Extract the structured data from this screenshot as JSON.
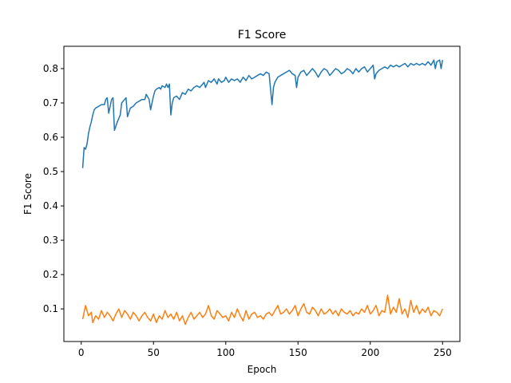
{
  "chart_data": {
    "type": "line",
    "title": "F1 Score",
    "xlabel": "Epoch",
    "ylabel": "F1 Score",
    "xlim": [
      -12,
      262
    ],
    "ylim": [
      0.005,
      0.865
    ],
    "xticks": [
      0,
      50,
      100,
      150,
      200,
      250
    ],
    "yticks": [
      0.1,
      0.2,
      0.3,
      0.4,
      0.5,
      0.6,
      0.7,
      0.8
    ],
    "ytick_labels": [
      "0.1",
      "0.2",
      "0.3",
      "0.4",
      "0.5",
      "0.6",
      "0.7",
      "0.8"
    ],
    "grid": false,
    "legend": false,
    "series": [
      {
        "color": "#1f77b4",
        "points": [
          [
            1,
            0.51
          ],
          [
            2,
            0.57
          ],
          [
            3,
            0.565
          ],
          [
            4,
            0.58
          ],
          [
            5,
            0.61
          ],
          [
            6,
            0.63
          ],
          [
            7,
            0.645
          ],
          [
            8,
            0.665
          ],
          [
            9,
            0.68
          ],
          [
            10,
            0.685
          ],
          [
            12,
            0.69
          ],
          [
            14,
            0.695
          ],
          [
            16,
            0.695
          ],
          [
            17,
            0.71
          ],
          [
            18,
            0.715
          ],
          [
            19,
            0.67
          ],
          [
            20,
            0.69
          ],
          [
            21,
            0.71
          ],
          [
            22,
            0.715
          ],
          [
            23,
            0.62
          ],
          [
            25,
            0.645
          ],
          [
            27,
            0.665
          ],
          [
            28,
            0.7
          ],
          [
            30,
            0.71
          ],
          [
            31,
            0.715
          ],
          [
            32,
            0.66
          ],
          [
            34,
            0.685
          ],
          [
            36,
            0.69
          ],
          [
            38,
            0.7
          ],
          [
            40,
            0.705
          ],
          [
            42,
            0.71
          ],
          [
            44,
            0.71
          ],
          [
            45,
            0.725
          ],
          [
            47,
            0.71
          ],
          [
            48,
            0.68
          ],
          [
            50,
            0.72
          ],
          [
            51,
            0.735
          ],
          [
            52,
            0.74
          ],
          [
            54,
            0.745
          ],
          [
            55,
            0.74
          ],
          [
            56,
            0.75
          ],
          [
            58,
            0.745
          ],
          [
            59,
            0.755
          ],
          [
            60,
            0.745
          ],
          [
            61,
            0.755
          ],
          [
            62,
            0.665
          ],
          [
            63,
            0.7
          ],
          [
            64,
            0.715
          ],
          [
            66,
            0.72
          ],
          [
            68,
            0.71
          ],
          [
            70,
            0.73
          ],
          [
            72,
            0.725
          ],
          [
            74,
            0.74
          ],
          [
            76,
            0.735
          ],
          [
            78,
            0.745
          ],
          [
            80,
            0.75
          ],
          [
            82,
            0.745
          ],
          [
            84,
            0.755
          ],
          [
            85,
            0.76
          ],
          [
            86,
            0.745
          ],
          [
            88,
            0.765
          ],
          [
            90,
            0.76
          ],
          [
            92,
            0.77
          ],
          [
            94,
            0.755
          ],
          [
            95,
            0.77
          ],
          [
            97,
            0.76
          ],
          [
            99,
            0.765
          ],
          [
            100,
            0.775
          ],
          [
            102,
            0.76
          ],
          [
            104,
            0.77
          ],
          [
            106,
            0.765
          ],
          [
            108,
            0.77
          ],
          [
            110,
            0.76
          ],
          [
            112,
            0.775
          ],
          [
            114,
            0.765
          ],
          [
            116,
            0.78
          ],
          [
            118,
            0.77
          ],
          [
            120,
            0.775
          ],
          [
            122,
            0.78
          ],
          [
            124,
            0.785
          ],
          [
            126,
            0.78
          ],
          [
            128,
            0.79
          ],
          [
            130,
            0.785
          ],
          [
            132,
            0.695
          ],
          [
            133,
            0.745
          ],
          [
            134,
            0.76
          ],
          [
            136,
            0.775
          ],
          [
            138,
            0.78
          ],
          [
            140,
            0.785
          ],
          [
            142,
            0.79
          ],
          [
            144,
            0.795
          ],
          [
            146,
            0.785
          ],
          [
            148,
            0.78
          ],
          [
            149,
            0.745
          ],
          [
            150,
            0.775
          ],
          [
            152,
            0.79
          ],
          [
            154,
            0.795
          ],
          [
            156,
            0.78
          ],
          [
            158,
            0.79
          ],
          [
            160,
            0.8
          ],
          [
            162,
            0.79
          ],
          [
            164,
            0.775
          ],
          [
            166,
            0.79
          ],
          [
            168,
            0.8
          ],
          [
            170,
            0.795
          ],
          [
            172,
            0.78
          ],
          [
            174,
            0.79
          ],
          [
            176,
            0.8
          ],
          [
            178,
            0.795
          ],
          [
            180,
            0.785
          ],
          [
            182,
            0.79
          ],
          [
            184,
            0.8
          ],
          [
            186,
            0.795
          ],
          [
            188,
            0.785
          ],
          [
            190,
            0.8
          ],
          [
            192,
            0.79
          ],
          [
            194,
            0.8
          ],
          [
            196,
            0.805
          ],
          [
            198,
            0.79
          ],
          [
            200,
            0.8
          ],
          [
            202,
            0.81
          ],
          [
            203,
            0.77
          ],
          [
            204,
            0.785
          ],
          [
            206,
            0.795
          ],
          [
            208,
            0.8
          ],
          [
            210,
            0.805
          ],
          [
            212,
            0.8
          ],
          [
            214,
            0.81
          ],
          [
            216,
            0.805
          ],
          [
            218,
            0.81
          ],
          [
            220,
            0.805
          ],
          [
            222,
            0.81
          ],
          [
            224,
            0.815
          ],
          [
            226,
            0.805
          ],
          [
            228,
            0.815
          ],
          [
            230,
            0.81
          ],
          [
            232,
            0.815
          ],
          [
            234,
            0.81
          ],
          [
            236,
            0.815
          ],
          [
            238,
            0.81
          ],
          [
            240,
            0.82
          ],
          [
            242,
            0.81
          ],
          [
            244,
            0.825
          ],
          [
            245,
            0.8
          ],
          [
            246,
            0.82
          ],
          [
            248,
            0.825
          ],
          [
            249,
            0.8
          ],
          [
            250,
            0.825
          ]
        ]
      },
      {
        "color": "#ff7f0e",
        "points": [
          [
            1,
            0.07
          ],
          [
            3,
            0.11
          ],
          [
            5,
            0.08
          ],
          [
            7,
            0.09
          ],
          [
            8,
            0.06
          ],
          [
            10,
            0.08
          ],
          [
            12,
            0.07
          ],
          [
            14,
            0.095
          ],
          [
            16,
            0.075
          ],
          [
            18,
            0.09
          ],
          [
            20,
            0.08
          ],
          [
            22,
            0.065
          ],
          [
            24,
            0.085
          ],
          [
            26,
            0.1
          ],
          [
            28,
            0.075
          ],
          [
            30,
            0.095
          ],
          [
            32,
            0.085
          ],
          [
            34,
            0.07
          ],
          [
            36,
            0.09
          ],
          [
            38,
            0.08
          ],
          [
            40,
            0.065
          ],
          [
            42,
            0.08
          ],
          [
            44,
            0.09
          ],
          [
            46,
            0.075
          ],
          [
            48,
            0.065
          ],
          [
            50,
            0.085
          ],
          [
            52,
            0.06
          ],
          [
            54,
            0.08
          ],
          [
            56,
            0.07
          ],
          [
            58,
            0.095
          ],
          [
            60,
            0.075
          ],
          [
            62,
            0.085
          ],
          [
            64,
            0.07
          ],
          [
            66,
            0.09
          ],
          [
            68,
            0.065
          ],
          [
            70,
            0.08
          ],
          [
            72,
            0.055
          ],
          [
            74,
            0.075
          ],
          [
            76,
            0.09
          ],
          [
            78,
            0.07
          ],
          [
            80,
            0.08
          ],
          [
            82,
            0.09
          ],
          [
            84,
            0.075
          ],
          [
            86,
            0.085
          ],
          [
            88,
            0.11
          ],
          [
            90,
            0.08
          ],
          [
            92,
            0.07
          ],
          [
            94,
            0.095
          ],
          [
            96,
            0.085
          ],
          [
            98,
            0.075
          ],
          [
            100,
            0.08
          ],
          [
            102,
            0.065
          ],
          [
            104,
            0.09
          ],
          [
            106,
            0.075
          ],
          [
            108,
            0.1
          ],
          [
            110,
            0.08
          ],
          [
            112,
            0.065
          ],
          [
            114,
            0.095
          ],
          [
            116,
            0.07
          ],
          [
            118,
            0.085
          ],
          [
            120,
            0.09
          ],
          [
            122,
            0.075
          ],
          [
            124,
            0.08
          ],
          [
            126,
            0.07
          ],
          [
            128,
            0.085
          ],
          [
            130,
            0.09
          ],
          [
            132,
            0.08
          ],
          [
            134,
            0.095
          ],
          [
            136,
            0.11
          ],
          [
            138,
            0.085
          ],
          [
            140,
            0.09
          ],
          [
            142,
            0.1
          ],
          [
            144,
            0.085
          ],
          [
            146,
            0.095
          ],
          [
            148,
            0.11
          ],
          [
            150,
            0.08
          ],
          [
            152,
            0.1
          ],
          [
            154,
            0.115
          ],
          [
            156,
            0.09
          ],
          [
            158,
            0.085
          ],
          [
            160,
            0.105
          ],
          [
            162,
            0.095
          ],
          [
            164,
            0.08
          ],
          [
            166,
            0.1
          ],
          [
            168,
            0.085
          ],
          [
            170,
            0.09
          ],
          [
            172,
            0.1
          ],
          [
            174,
            0.085
          ],
          [
            176,
            0.095
          ],
          [
            178,
            0.08
          ],
          [
            180,
            0.1
          ],
          [
            182,
            0.09
          ],
          [
            184,
            0.085
          ],
          [
            186,
            0.095
          ],
          [
            188,
            0.08
          ],
          [
            190,
            0.09
          ],
          [
            192,
            0.085
          ],
          [
            194,
            0.1
          ],
          [
            196,
            0.09
          ],
          [
            198,
            0.11
          ],
          [
            200,
            0.085
          ],
          [
            202,
            0.095
          ],
          [
            204,
            0.11
          ],
          [
            206,
            0.08
          ],
          [
            208,
            0.095
          ],
          [
            210,
            0.09
          ],
          [
            212,
            0.14
          ],
          [
            214,
            0.085
          ],
          [
            216,
            0.105
          ],
          [
            218,
            0.09
          ],
          [
            220,
            0.13
          ],
          [
            222,
            0.085
          ],
          [
            224,
            0.1
          ],
          [
            226,
            0.075
          ],
          [
            228,
            0.125
          ],
          [
            230,
            0.09
          ],
          [
            232,
            0.11
          ],
          [
            234,
            0.085
          ],
          [
            236,
            0.1
          ],
          [
            238,
            0.09
          ],
          [
            240,
            0.105
          ],
          [
            242,
            0.08
          ],
          [
            244,
            0.095
          ],
          [
            246,
            0.09
          ],
          [
            248,
            0.08
          ],
          [
            250,
            0.1
          ]
        ]
      }
    ]
  }
}
